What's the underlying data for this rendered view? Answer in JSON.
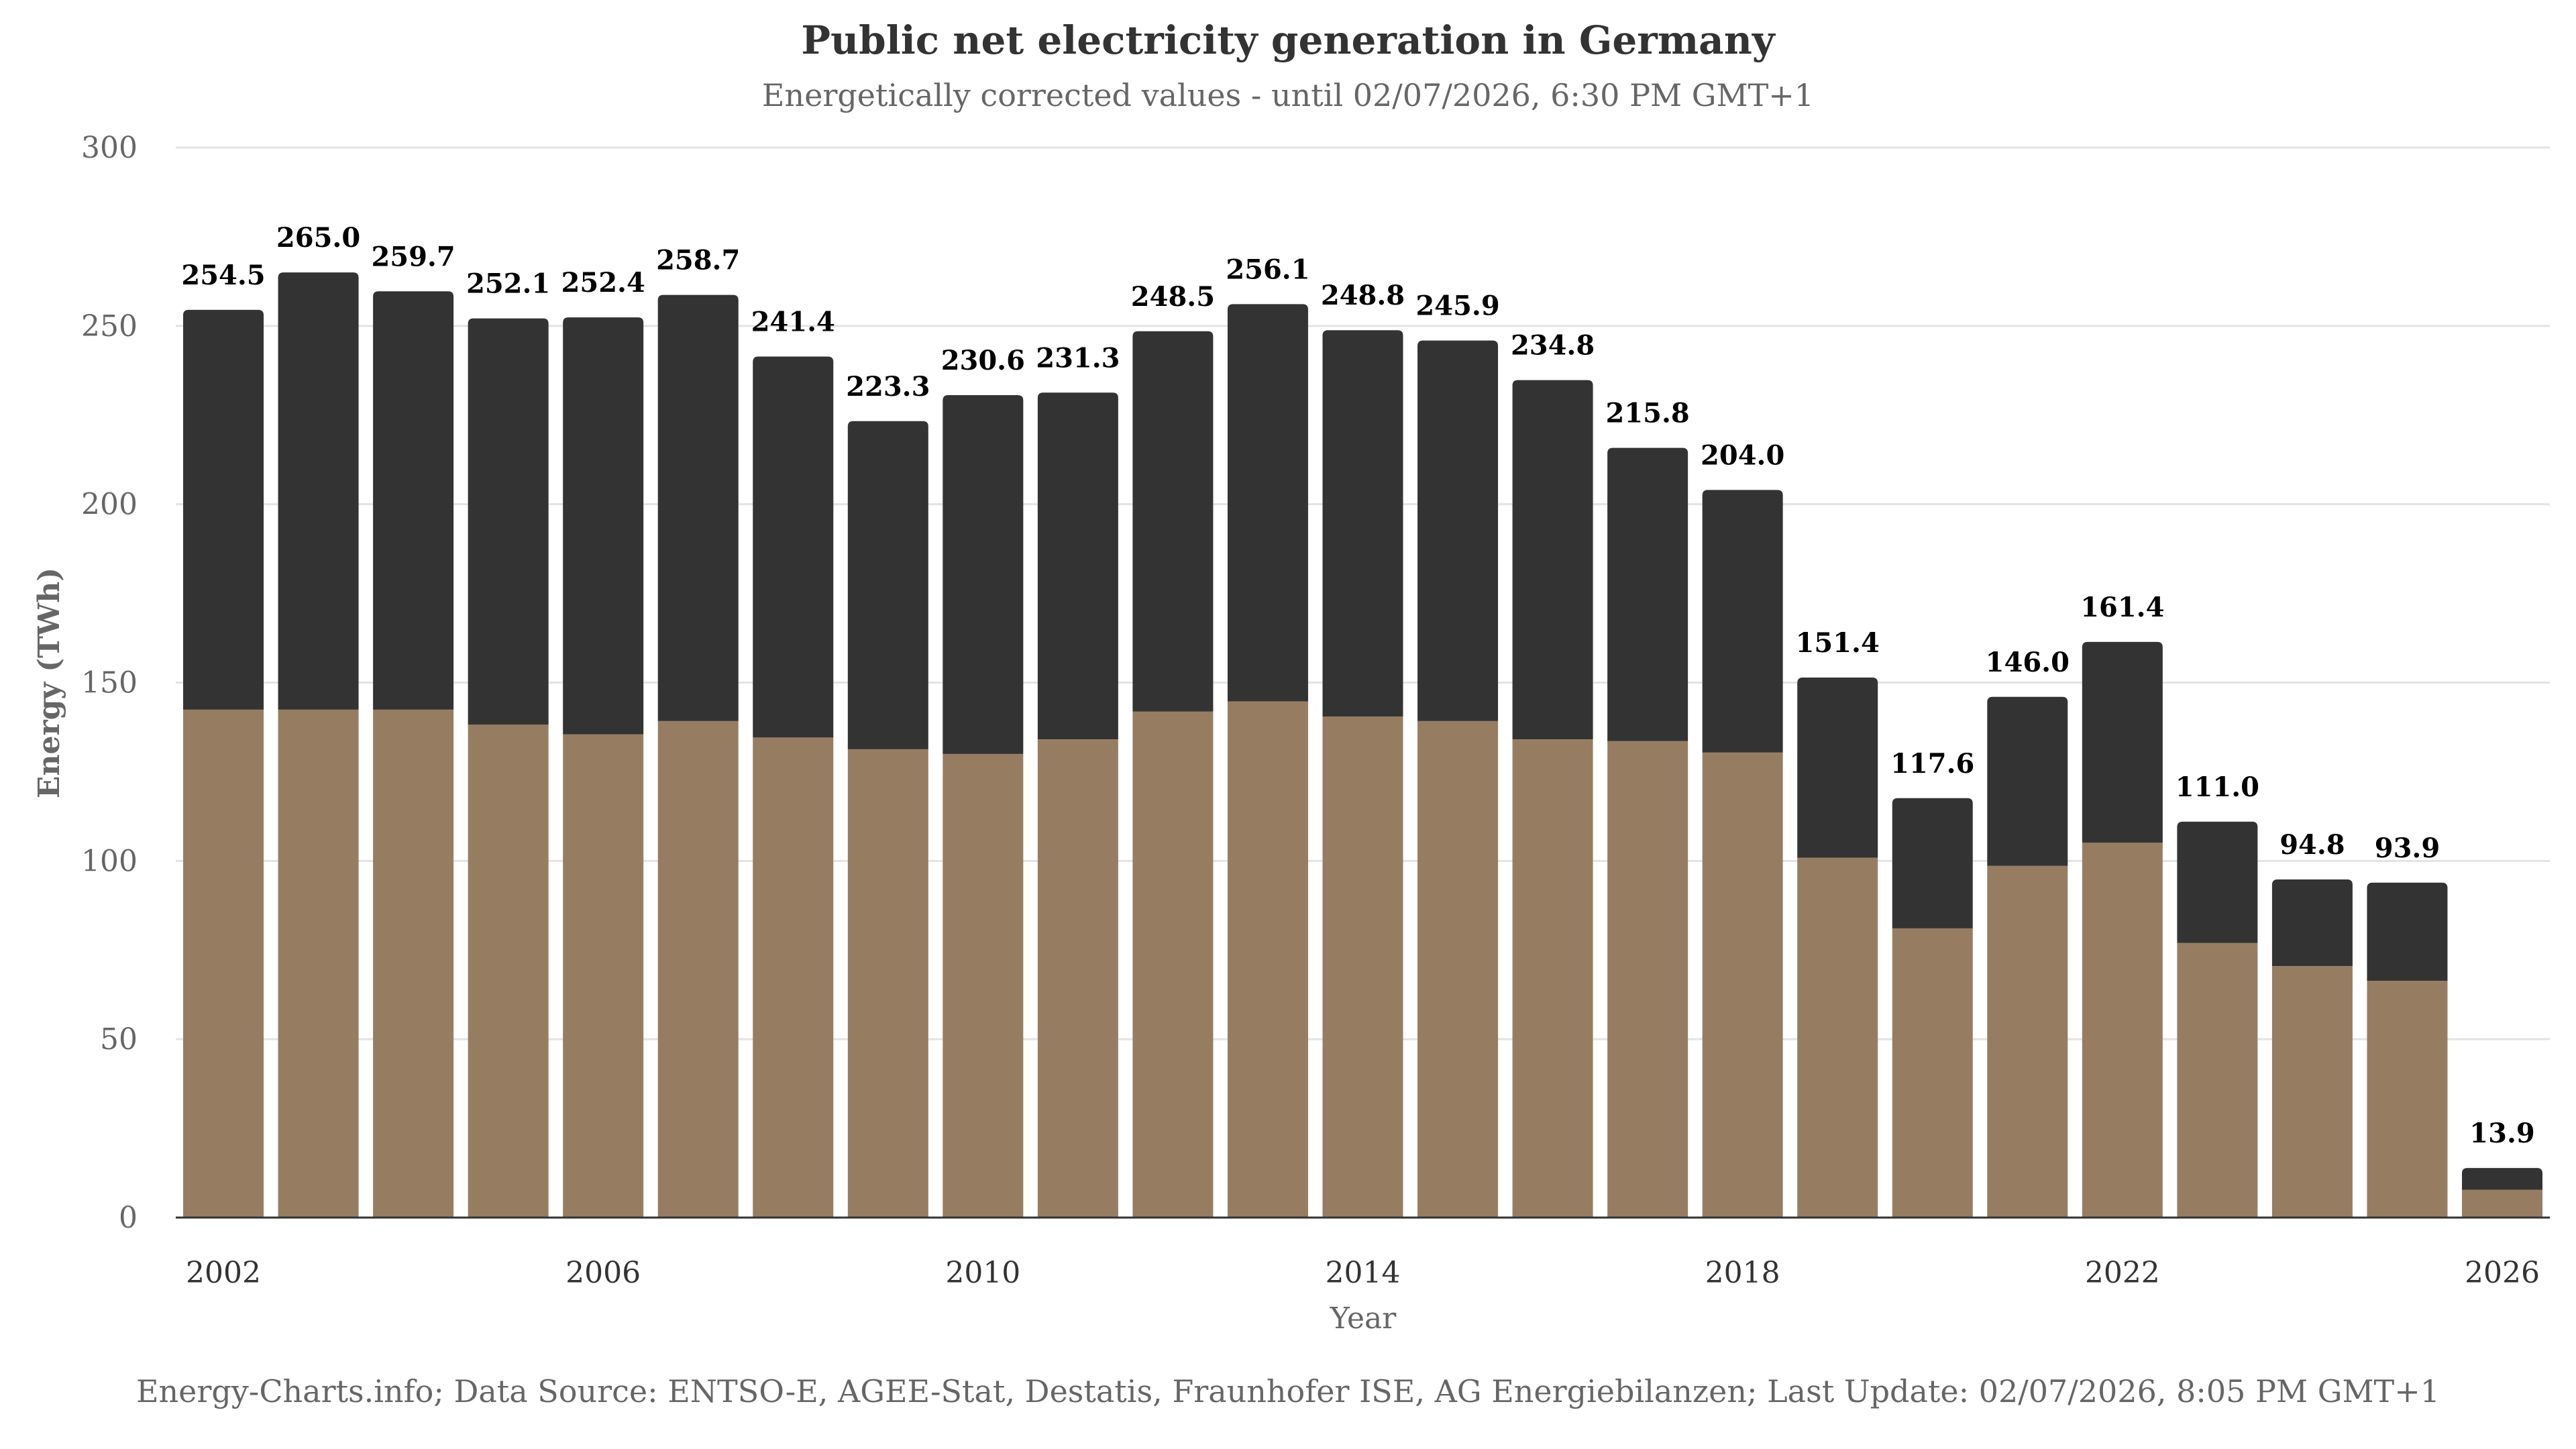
{
  "chart_data": {
    "type": "bar",
    "stacked": true,
    "title": "Public net electricity generation in Germany",
    "subtitle": "Energetically corrected values - until 02/07/2026, 6:30 PM GMT+1",
    "xlabel": "Year",
    "ylabel": "Energy (TWh)",
    "ylim": [
      0,
      300
    ],
    "yticks": [
      0,
      50,
      100,
      150,
      200,
      250,
      300
    ],
    "xticks": [
      "2002",
      "2006",
      "2010",
      "2014",
      "2018",
      "2022",
      "2026"
    ],
    "grid": true,
    "categories": [
      "2002",
      "2003",
      "2004",
      "2005",
      "2006",
      "2007",
      "2008",
      "2009",
      "2010",
      "2011",
      "2012",
      "2013",
      "2014",
      "2015",
      "2016",
      "2017",
      "2018",
      "2019",
      "2020",
      "2021",
      "2022",
      "2023",
      "2024",
      "2025",
      "2026"
    ],
    "series": [
      {
        "color": "#967d62",
        "values": [
          142.4,
          142.4,
          142.4,
          138.2,
          135.5,
          139.2,
          134.6,
          131.3,
          130.0,
          134.1,
          141.9,
          144.7,
          140.5,
          139.2,
          134.1,
          133.6,
          130.4,
          100.9,
          81.1,
          98.6,
          105.1,
          77.0,
          70.5,
          66.4,
          7.8
        ]
      },
      {
        "color": "#333333",
        "values": [
          112.1,
          122.6,
          117.3,
          113.9,
          116.9,
          119.5,
          106.8,
          92.0,
          100.6,
          97.2,
          106.6,
          111.4,
          108.3,
          106.7,
          100.7,
          82.2,
          73.6,
          50.5,
          36.5,
          47.4,
          56.3,
          34.0,
          24.3,
          27.5,
          6.1
        ]
      }
    ],
    "totals": [
      "254.5",
      "265.0",
      "259.7",
      "252.1",
      "252.4",
      "258.7",
      "241.4",
      "223.3",
      "230.6",
      "231.3",
      "248.5",
      "256.1",
      "248.8",
      "245.9",
      "234.8",
      "215.8",
      "204.0",
      "151.4",
      "117.6",
      "146.0",
      "161.4",
      "111.0",
      "94.8",
      "93.9",
      "13.9"
    ],
    "footer": "Energy-Charts.info; Data Source: ENTSO-E, AGEE-Stat, Destatis, Fraunhofer ISE, AG Energiebilanzen; Last Update: 02/07/2026, 8:05 PM GMT+1"
  }
}
